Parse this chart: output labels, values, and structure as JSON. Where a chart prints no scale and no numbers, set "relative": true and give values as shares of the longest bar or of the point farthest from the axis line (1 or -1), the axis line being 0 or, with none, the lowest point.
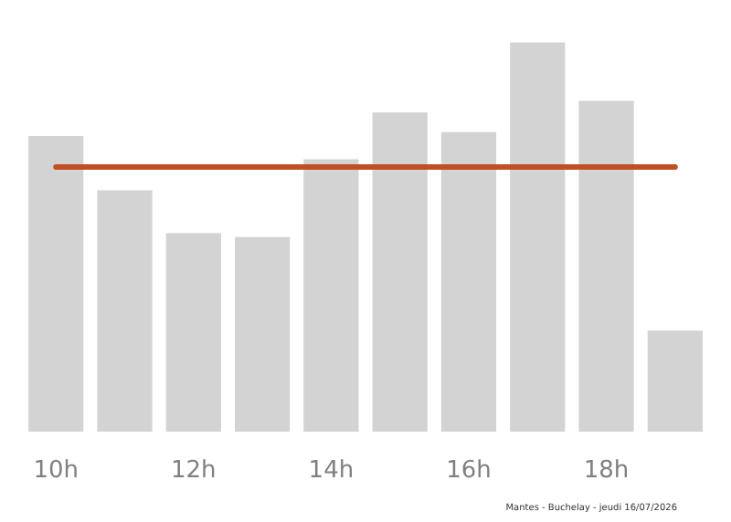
{
  "chart_data": {
    "type": "bar",
    "relative": true,
    "categories": [
      "10h",
      null,
      "12h",
      null,
      "14h",
      null,
      "16h",
      null,
      "18h",
      null
    ],
    "values": [
      0.76,
      0.62,
      0.51,
      0.5,
      0.7,
      0.82,
      0.77,
      1,
      0.85,
      0.26
    ],
    "color": "#d3d3d3",
    "ref_lines": [
      {
        "axis": "y",
        "value": 0.68,
        "color": "#c0501f"
      }
    ],
    "grid": false,
    "annotations": [
      "Mantes - Buchelay - jeudi 16/07/2026"
    ]
  }
}
